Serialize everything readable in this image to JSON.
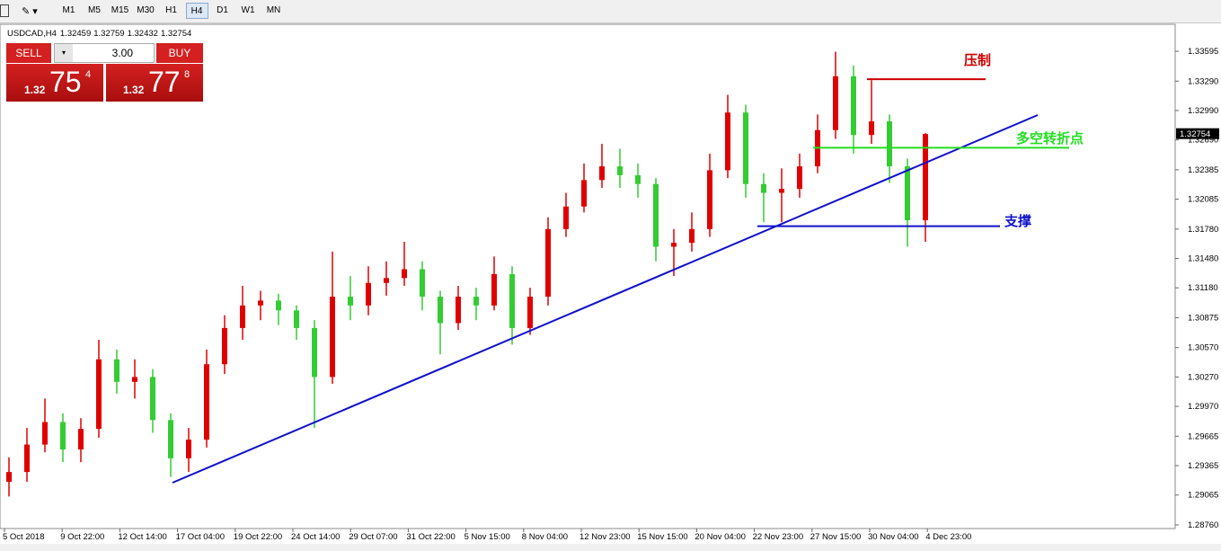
{
  "toolbar": {
    "timeframes": [
      "M1",
      "M5",
      "M15",
      "M30",
      "H1",
      "H4",
      "D1",
      "W1",
      "MN"
    ],
    "active": "H4"
  },
  "trade_panel": {
    "sell": "SELL",
    "buy": "BUY",
    "lot": "3.00",
    "bid": {
      "big": 1.32,
      "main": 75,
      "small": 4
    },
    "ask": {
      "big": 1.32,
      "main": 77,
      "small": 8
    }
  },
  "chart_data": {
    "type": "candlestick",
    "symbol": "USDCAD,H4",
    "ohlc": [
      1.32459,
      1.32759,
      1.32432,
      1.32754
    ],
    "up_color": "#e00000",
    "down_color": "#33cc33",
    "current_price": 1.32754,
    "ylim": [
      1.28723,
      1.33843
    ],
    "yticks": [
      {
        "value": 1.2876,
        "label": "1.28760"
      },
      1.29065,
      1.29365,
      1.29665,
      {
        "value": 1.2997,
        "label": "1.29970"
      },
      {
        "value": 1.3027,
        "label": "1.30270"
      },
      {
        "value": 1.3057,
        "label": "1.30570"
      },
      1.30875,
      {
        "value": 1.3118,
        "label": "1.31180"
      },
      {
        "value": 1.3148,
        "label": "1.31480"
      },
      {
        "value": 1.3178,
        "label": "1.31780"
      },
      1.32085,
      1.32385,
      {
        "value": 1.3269,
        "label": "1.32690"
      },
      {
        "value": 1.3299,
        "label": "1.32990"
      },
      {
        "value": 1.3329,
        "label": "1.33290"
      },
      1.33595
    ],
    "xticks": [
      "5 Oct 2018",
      "9 Oct 22:00",
      "12 Oct 14:00",
      "17 Oct 04:00",
      "19 Oct 22:00",
      "24 Oct 14:00",
      "29 Oct 07:00",
      "31 Oct 22:00",
      "5 Nov 15:00",
      "8 Nov 04:00",
      "12 Nov 23:00",
      "15 Nov 15:00",
      "20 Nov 04:00",
      "22 Nov 23:00",
      "27 Nov 15:00",
      "30 Nov 04:00",
      "4 Dec 23:00"
    ],
    "candles": [
      {
        "o": 1.292,
        "h": 1.2945,
        "l": 1.2905,
        "c": 1.293
      },
      {
        "o": 1.293,
        "h": 1.2975,
        "l": 1.292,
        "c": 1.2958
      },
      {
        "o": 1.2958,
        "h": 1.3005,
        "l": 1.295,
        "c": 1.2981
      },
      {
        "o": 1.2981,
        "h": 1.299,
        "l": 1.294,
        "c": 1.2953
      },
      {
        "o": 1.2953,
        "h": 1.2985,
        "l": 1.294,
        "c": 1.2974
      },
      {
        "o": 1.2974,
        "h": 1.3065,
        "l": 1.2965,
        "c": 1.3045
      },
      {
        "o": 1.3045,
        "h": 1.3055,
        "l": 1.301,
        "c": 1.3022
      },
      {
        "o": 1.3022,
        "h": 1.3045,
        "l": 1.3005,
        "c": 1.3027
      },
      {
        "o": 1.3027,
        "h": 1.3035,
        "l": 1.297,
        "c": 1.2983
      },
      {
        "o": 1.2983,
        "h": 1.299,
        "l": 1.2925,
        "c": 1.2944
      },
      {
        "o": 1.2944,
        "h": 1.2975,
        "l": 1.293,
        "c": 1.2963
      },
      {
        "o": 1.2963,
        "h": 1.3055,
        "l": 1.2955,
        "c": 1.304
      },
      {
        "o": 1.304,
        "h": 1.309,
        "l": 1.303,
        "c": 1.3077
      },
      {
        "o": 1.3077,
        "h": 1.312,
        "l": 1.3065,
        "c": 1.31
      },
      {
        "o": 1.31,
        "h": 1.3115,
        "l": 1.3085,
        "c": 1.3105
      },
      {
        "o": 1.3105,
        "h": 1.3112,
        "l": 1.308,
        "c": 1.3095
      },
      {
        "o": 1.3095,
        "h": 1.31,
        "l": 1.3065,
        "c": 1.3077
      },
      {
        "o": 1.3077,
        "h": 1.3085,
        "l": 1.2975,
        "c": 1.3027
      },
      {
        "o": 1.3027,
        "h": 1.3155,
        "l": 1.302,
        "c": 1.3109
      },
      {
        "o": 1.3109,
        "h": 1.313,
        "l": 1.3085,
        "c": 1.31
      },
      {
        "o": 1.31,
        "h": 1.314,
        "l": 1.309,
        "c": 1.3123
      },
      {
        "o": 1.3123,
        "h": 1.3145,
        "l": 1.311,
        "c": 1.3128
      },
      {
        "o": 1.3128,
        "h": 1.3165,
        "l": 1.312,
        "c": 1.3137
      },
      {
        "o": 1.3137,
        "h": 1.3145,
        "l": 1.3095,
        "c": 1.3109
      },
      {
        "o": 1.3109,
        "h": 1.3115,
        "l": 1.305,
        "c": 1.3082
      },
      {
        "o": 1.3082,
        "h": 1.312,
        "l": 1.3075,
        "c": 1.3109
      },
      {
        "o": 1.3109,
        "h": 1.3118,
        "l": 1.3085,
        "c": 1.31
      },
      {
        "o": 1.31,
        "h": 1.315,
        "l": 1.3095,
        "c": 1.3132
      },
      {
        "o": 1.3132,
        "h": 1.314,
        "l": 1.306,
        "c": 1.3077
      },
      {
        "o": 1.3077,
        "h": 1.3118,
        "l": 1.307,
        "c": 1.3109
      },
      {
        "o": 1.3109,
        "h": 1.319,
        "l": 1.31,
        "c": 1.3178
      },
      {
        "o": 1.3178,
        "h": 1.3215,
        "l": 1.317,
        "c": 1.3201
      },
      {
        "o": 1.3201,
        "h": 1.3245,
        "l": 1.3195,
        "c": 1.3228
      },
      {
        "o": 1.3228,
        "h": 1.3265,
        "l": 1.322,
        "c": 1.3242
      },
      {
        "o": 1.3242,
        "h": 1.326,
        "l": 1.322,
        "c": 1.3233
      },
      {
        "o": 1.3233,
        "h": 1.3245,
        "l": 1.321,
        "c": 1.3224
      },
      {
        "o": 1.3224,
        "h": 1.323,
        "l": 1.3145,
        "c": 1.316
      },
      {
        "o": 1.316,
        "h": 1.3178,
        "l": 1.313,
        "c": 1.3164
      },
      {
        "o": 1.3164,
        "h": 1.3195,
        "l": 1.3155,
        "c": 1.3178
      },
      {
        "o": 1.3178,
        "h": 1.3255,
        "l": 1.317,
        "c": 1.3238
      },
      {
        "o": 1.3238,
        "h": 1.3315,
        "l": 1.323,
        "c": 1.3297
      },
      {
        "o": 1.3297,
        "h": 1.3305,
        "l": 1.321,
        "c": 1.3224
      },
      {
        "o": 1.3224,
        "h": 1.3235,
        "l": 1.3185,
        "c": 1.3215
      },
      {
        "o": 1.3215,
        "h": 1.324,
        "l": 1.3185,
        "c": 1.3219
      },
      {
        "o": 1.3219,
        "h": 1.3255,
        "l": 1.321,
        "c": 1.3242
      },
      {
        "o": 1.3242,
        "h": 1.3295,
        "l": 1.3235,
        "c": 1.3279
      },
      {
        "o": 1.3279,
        "h": 1.3359,
        "l": 1.327,
        "c": 1.3334
      },
      {
        "o": 1.3334,
        "h": 1.3345,
        "l": 1.3255,
        "c": 1.3274
      },
      {
        "o": 1.3274,
        "h": 1.333,
        "l": 1.3265,
        "c": 1.3288
      },
      {
        "o": 1.3288,
        "h": 1.3295,
        "l": 1.3225,
        "c": 1.3242
      },
      {
        "o": 1.3242,
        "h": 1.325,
        "l": 1.316,
        "c": 1.3187
      },
      {
        "o": 1.3187,
        "h": 1.3276,
        "l": 1.3165,
        "c": 1.3275
      }
    ],
    "levels": [
      {
        "label": "压制",
        "price": 1.3331,
        "color": "#cc0000"
      },
      {
        "label": "多空转折点",
        "price": 1.3261,
        "color": "#22dd22"
      },
      {
        "label": "支撑",
        "price": 1.3181,
        "color": "#1010cc"
      }
    ]
  }
}
